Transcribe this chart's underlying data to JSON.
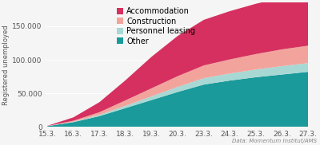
{
  "x_labels": [
    "15.3.",
    "16.3.",
    "17.3.",
    "18.3.",
    "19.3.",
    "20.3.",
    "23.3.",
    "24.3.",
    "25.3.",
    "26.3.",
    "27.3."
  ],
  "x_values": [
    0,
    1,
    2,
    3,
    4,
    5,
    6,
    7,
    8,
    9,
    10
  ],
  "other": [
    1000,
    7000,
    16000,
    28000,
    40000,
    52000,
    63000,
    69000,
    74000,
    78000,
    82000
  ],
  "personnel_leasing": [
    100,
    600,
    1800,
    3500,
    5500,
    7500,
    9500,
    10500,
    11500,
    12500,
    13000
  ],
  "construction": [
    200,
    1500,
    4000,
    8000,
    12000,
    16000,
    19000,
    21000,
    23000,
    25000,
    26000
  ],
  "accommodation": [
    200,
    5000,
    15000,
    30000,
    47000,
    60000,
    68000,
    72000,
    75000,
    77000,
    78000
  ],
  "colors": {
    "other": "#1a9a9a",
    "personnel_leasing": "#a8d8d4",
    "construction": "#f2a49c",
    "accommodation": "#d63060"
  },
  "legend_labels": [
    "Accommodation",
    "Construction",
    "Personnel leasing",
    "Other"
  ],
  "ylabel": "Registered unemployed",
  "yticks": [
    0,
    50000,
    100000,
    150000
  ],
  "ylim": [
    0,
    185000
  ],
  "xlim": [
    -0.05,
    10.05
  ],
  "background_color": "#f5f5f5",
  "source_text": "Data: Momentum Institut/AMS",
  "tick_fontsize": 6.5,
  "legend_fontsize": 7,
  "ylabel_fontsize": 6,
  "source_fontsize": 5
}
